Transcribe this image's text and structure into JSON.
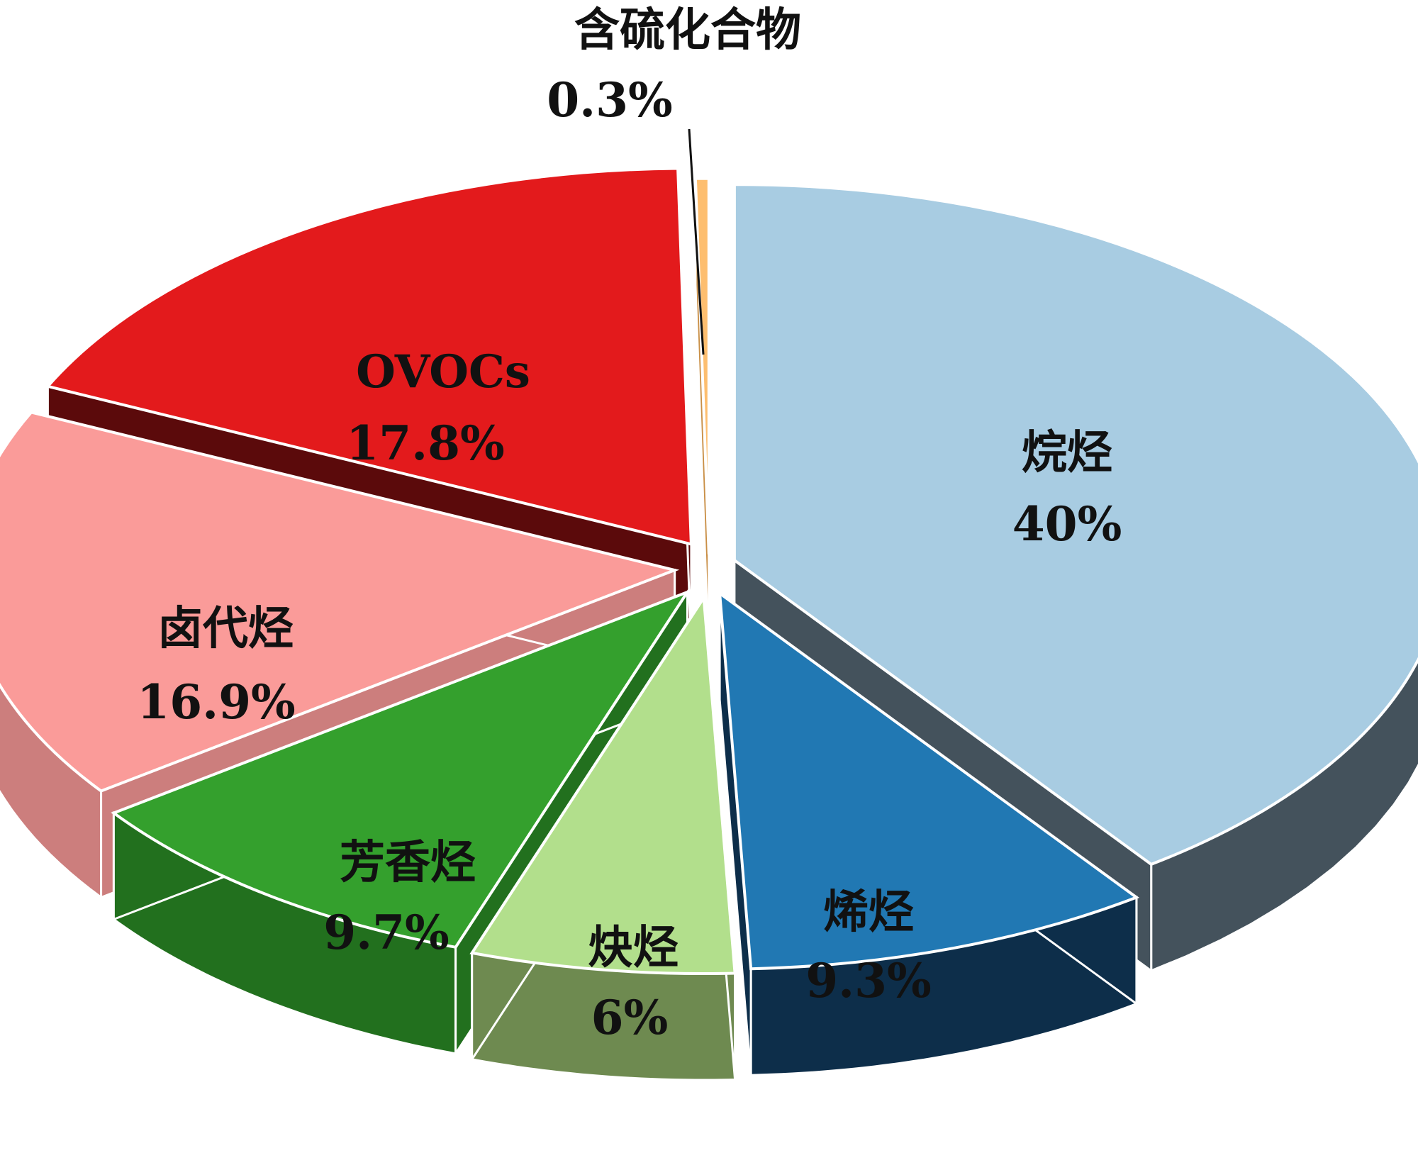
{
  "chart_data": {
    "type": "pie",
    "title": "",
    "style": "3d-exploded",
    "slices": [
      {
        "name": "烷烃",
        "label": "40%",
        "value": 40,
        "top": "#a8cce2",
        "side": "#44525c"
      },
      {
        "name": "烯烃",
        "label": "9.3%",
        "value": 9.3,
        "top": "#2178b3",
        "side": "#0d2e4a"
      },
      {
        "name": "炔烃",
        "label": "6%",
        "value": 6,
        "top": "#b2df8c",
        "side": "#6e8a50"
      },
      {
        "name": "芳香烃",
        "label": "9.7%",
        "value": 9.7,
        "top": "#34a02d",
        "side": "#22701e"
      },
      {
        "name": "卤代烃",
        "label": "16.9%",
        "value": 16.9,
        "top": "#fa9b99",
        "side": "#cc7e7d"
      },
      {
        "name": "OVOCs",
        "label": "17.8%",
        "value": 17.8,
        "top": "#e31a1c",
        "side": "#5b0a0b"
      },
      {
        "name": "含硫化合物",
        "label": "0.3%",
        "value": 0.3,
        "top": "#fdbe6f",
        "side": "#c98f46"
      }
    ]
  }
}
